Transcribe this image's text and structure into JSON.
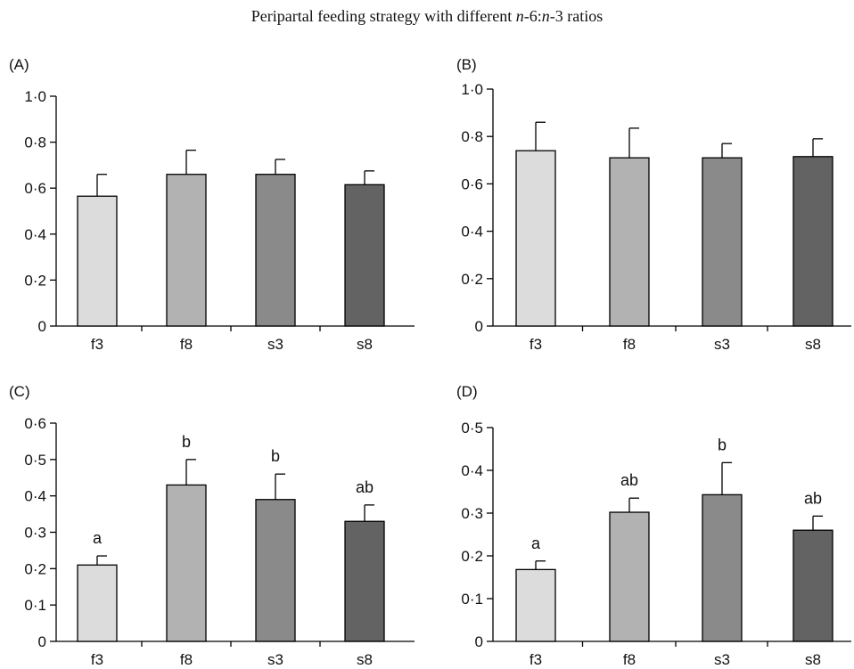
{
  "title": {
    "prefix": "Peripartal feeding strategy with different ",
    "n1": "n",
    "mid1": "-6:",
    "n2": "n",
    "suffix": "-3 ratios"
  },
  "colors": {
    "bars": [
      "#dcdcdc",
      "#b2b2b2",
      "#8a8a8a",
      "#636363"
    ],
    "axis": "#000000"
  },
  "chart_data": [
    {
      "type": "bar",
      "panel_label": "(A)",
      "categories": [
        "f3",
        "f8",
        "s3",
        "s8"
      ],
      "values": [
        0.565,
        0.66,
        0.66,
        0.615
      ],
      "errors": [
        0.095,
        0.105,
        0.065,
        0.06
      ],
      "annotations": [
        "",
        "",
        "",
        ""
      ],
      "ylim": [
        0,
        1.0
      ],
      "yticks": [
        0,
        0.2,
        0.4,
        0.6,
        0.8,
        1.0
      ],
      "ytick_labels": [
        "0",
        "0·2",
        "0·4",
        "0·6",
        "0·8",
        "1·0"
      ]
    },
    {
      "type": "bar",
      "panel_label": "(B)",
      "categories": [
        "f3",
        "f8",
        "s3",
        "s8"
      ],
      "values": [
        0.74,
        0.71,
        0.71,
        0.715
      ],
      "errors": [
        0.12,
        0.125,
        0.06,
        0.075
      ],
      "annotations": [
        "",
        "",
        "",
        ""
      ],
      "ylim": [
        0,
        1.0
      ],
      "yticks": [
        0,
        0.2,
        0.4,
        0.6,
        0.8,
        1.0
      ],
      "ytick_labels": [
        "0",
        "0·2",
        "0·4",
        "0·6",
        "0·8",
        "1·0"
      ]
    },
    {
      "type": "bar",
      "panel_label": "(C)",
      "categories": [
        "f3",
        "f8",
        "s3",
        "s8"
      ],
      "values": [
        0.21,
        0.43,
        0.39,
        0.33
      ],
      "errors": [
        0.025,
        0.07,
        0.07,
        0.045
      ],
      "annotations": [
        "a",
        "b",
        "b",
        "ab"
      ],
      "ylim": [
        0,
        0.6
      ],
      "yticks": [
        0,
        0.1,
        0.2,
        0.3,
        0.4,
        0.5,
        0.6
      ],
      "ytick_labels": [
        "0",
        "0·1",
        "0·2",
        "0·3",
        "0·4",
        "0·5",
        "0·6"
      ]
    },
    {
      "type": "bar",
      "panel_label": "(D)",
      "categories": [
        "f3",
        "f8",
        "s3",
        "s8"
      ],
      "values": [
        0.168,
        0.302,
        0.343,
        0.26
      ],
      "errors": [
        0.02,
        0.033,
        0.075,
        0.033
      ],
      "annotations": [
        "a",
        "ab",
        "b",
        "ab"
      ],
      "ylim": [
        0,
        0.5
      ],
      "yticks": [
        0,
        0.1,
        0.2,
        0.3,
        0.4,
        0.5
      ],
      "ytick_labels": [
        "0",
        "0·1",
        "0·2",
        "0·3",
        "0·4",
        "0·5"
      ]
    }
  ]
}
